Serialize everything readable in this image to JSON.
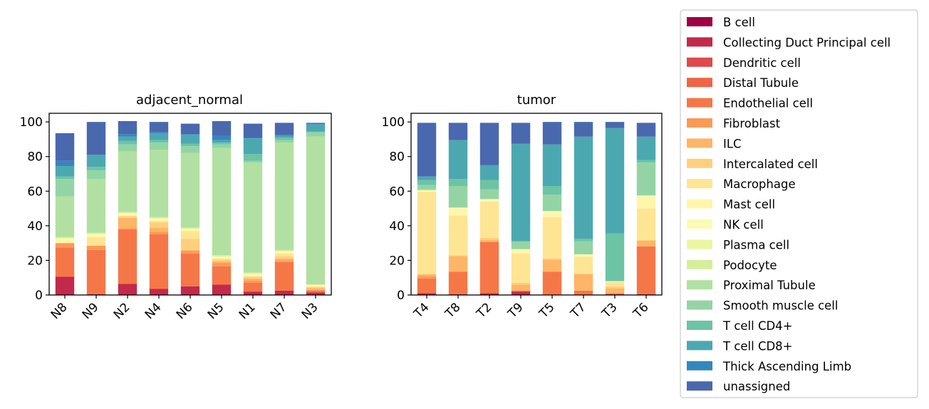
{
  "chart_data": {
    "type": "bar",
    "stacked": true,
    "ylim": [
      0,
      105
    ],
    "yticks": [
      0,
      20,
      40,
      60,
      80,
      100
    ],
    "legend_position": "right",
    "series": [
      {
        "name": "B cell",
        "color": "#9e0142"
      },
      {
        "name": "Collecting Duct Principal cell",
        "color": "#c2294a"
      },
      {
        "name": "Dendritic cell",
        "color": "#dc4a4c"
      },
      {
        "name": "Distal Tubule",
        "color": "#ee6445"
      },
      {
        "name": "Endothelial cell",
        "color": "#f57748"
      },
      {
        "name": "Fibroblast",
        "color": "#fa9a58"
      },
      {
        "name": "ILC",
        "color": "#fdb567"
      },
      {
        "name": "Intercalated cell",
        "color": "#fed07e"
      },
      {
        "name": "Macrophage",
        "color": "#fee593"
      },
      {
        "name": "Mast cell",
        "color": "#fff6ab"
      },
      {
        "name": "NK cell",
        "color": "#f9fcb6"
      },
      {
        "name": "Plasma cell",
        "color": "#eaf79e"
      },
      {
        "name": "Podocyte",
        "color": "#d6ee9b"
      },
      {
        "name": "Proximal Tubule",
        "color": "#b2e0a2"
      },
      {
        "name": "Smooth muscle cell",
        "color": "#94d4a4"
      },
      {
        "name": "T cell CD4+",
        "color": "#6cc4a5"
      },
      {
        "name": "T cell CD8+",
        "color": "#4ca8b0"
      },
      {
        "name": "Thick Ascending Limb",
        "color": "#3487bc"
      },
      {
        "name": "unassigned",
        "color": "#4a68ae"
      }
    ],
    "panels": [
      {
        "title": "adjacent_normal",
        "categories": [
          "N8",
          "N9",
          "N2",
          "N4",
          "N6",
          "N5",
          "N1",
          "N7",
          "N3"
        ],
        "values": [
          [
            0,
            10.5,
            0,
            0,
            17,
            2.5,
            0,
            0,
            0,
            2,
            0.5,
            0.5,
            0.5,
            23.5,
            10,
            1.5,
            6,
            3,
            16
          ],
          [
            0,
            0.5,
            0,
            0,
            25.5,
            2.5,
            0,
            0,
            5,
            1,
            0.5,
            0.5,
            0.5,
            31,
            5,
            2,
            7,
            0,
            19
          ],
          [
            0,
            6.5,
            0,
            0,
            31.5,
            0.5,
            6,
            1,
            0.5,
            0.5,
            0.5,
            0.5,
            0.5,
            35,
            4,
            2,
            2.5,
            1.5,
            7.5
          ],
          [
            0,
            3.5,
            0,
            0,
            31.5,
            1.5,
            2.5,
            3,
            1,
            0.5,
            0.5,
            0.5,
            0.5,
            39,
            4,
            1.5,
            4,
            0.5,
            6
          ],
          [
            0,
            5,
            0,
            0,
            19,
            1.5,
            0.5,
            6.5,
            4.5,
            0.5,
            0.5,
            0.5,
            0.5,
            43,
            4,
            1.5,
            5,
            0.5,
            6
          ],
          [
            0,
            6,
            0,
            0,
            10.5,
            2,
            1,
            1,
            0.5,
            0.5,
            0.5,
            0.5,
            0.5,
            62,
            2,
            1,
            1.5,
            2.5,
            8.5
          ],
          [
            0,
            2,
            0,
            0,
            5,
            1.5,
            1,
            1,
            0.5,
            0.5,
            0.5,
            0.5,
            0.5,
            63.5,
            1,
            4,
            9,
            0.5,
            8
          ],
          [
            0,
            2.5,
            0,
            0,
            16.5,
            1,
            1,
            1.5,
            1.5,
            0.5,
            0.5,
            0.5,
            0.5,
            62,
            1.5,
            1.5,
            1,
            0.5,
            7
          ],
          [
            0,
            1.5,
            0,
            0,
            1,
            0.5,
            1,
            0.5,
            0.5,
            0.5,
            0.5,
            0,
            0,
            85.5,
            2.5,
            0.5,
            4,
            0.5,
            0.5
          ]
        ]
      },
      {
        "title": "tumor",
        "categories": [
          "T4",
          "T8",
          "T2",
          "T9",
          "T5",
          "T7",
          "T3",
          "T6"
        ],
        "values": [
          [
            0,
            1,
            0,
            0,
            8.5,
            1.5,
            1,
            0,
            47.5,
            0.5,
            0.5,
            0,
            0,
            0.5,
            2.5,
            3,
            2,
            0,
            31
          ],
          [
            0,
            0.5,
            0,
            0,
            13,
            0,
            9,
            0.5,
            23,
            4,
            0.5,
            0,
            0,
            0,
            12.5,
            4,
            22.5,
            0,
            10
          ],
          [
            0,
            1,
            0,
            0,
            29.5,
            0.5,
            1,
            1,
            21,
            0.5,
            0.5,
            0.5,
            0,
            0,
            5.5,
            5.5,
            8.5,
            0,
            24.5
          ],
          [
            0,
            2,
            0,
            0,
            0.5,
            0,
            3.5,
            1,
            17,
            2,
            0.5,
            0,
            0,
            0,
            4.5,
            0,
            56.5,
            0,
            12
          ],
          [
            0,
            0,
            0,
            0,
            13.5,
            0,
            7,
            0.5,
            24,
            3,
            0.5,
            0,
            0,
            0,
            9.5,
            5,
            24,
            0,
            13
          ],
          [
            0,
            0,
            0,
            0,
            2.5,
            0,
            9.5,
            0.5,
            9.5,
            1,
            0.5,
            0,
            0,
            0,
            7.5,
            1.5,
            59,
            0,
            8.5
          ],
          [
            0,
            0.5,
            0,
            0,
            0.5,
            0,
            3,
            1,
            2.5,
            0.5,
            0,
            0,
            0,
            0,
            0,
            27.5,
            61,
            0,
            3.5
          ],
          [
            0,
            0.5,
            0,
            0,
            27.5,
            0,
            3.5,
            0,
            18.5,
            7,
            0.5,
            0,
            0,
            0,
            19,
            1.5,
            13.5,
            0,
            8
          ]
        ]
      }
    ]
  }
}
